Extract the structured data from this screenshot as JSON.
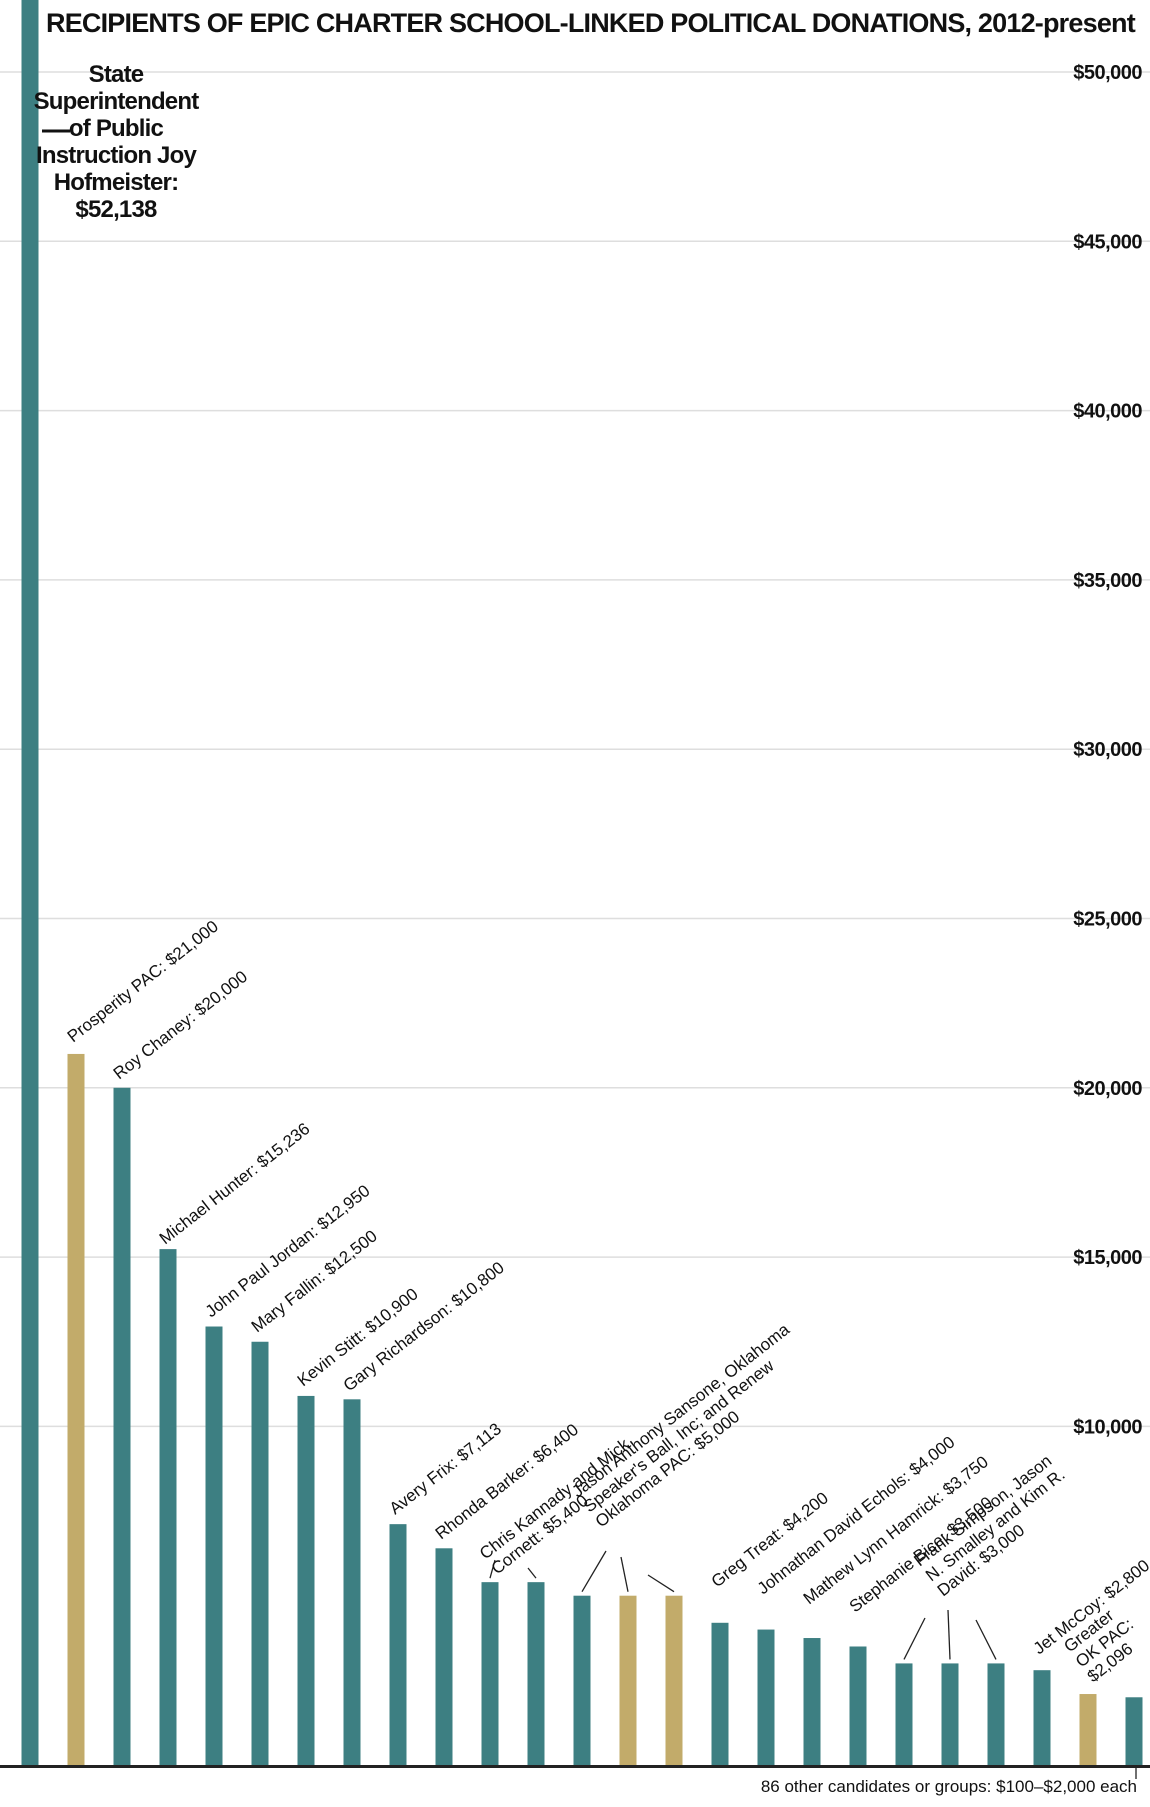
{
  "chart_data": {
    "type": "bar",
    "title": "RECIPIENTS OF EPIC CHARTER SCHOOL-LINKED POLITICAL DONATIONS, 2012-present",
    "ylim": [
      0,
      52138
    ],
    "yticks": [
      {
        "value": 10000,
        "label": "$10,000"
      },
      {
        "value": 15000,
        "label": "$15,000"
      },
      {
        "value": 20000,
        "label": "$20,000"
      },
      {
        "value": 25000,
        "label": "$25,000"
      },
      {
        "value": 30000,
        "label": "$30,000"
      },
      {
        "value": 35000,
        "label": "$35,000"
      },
      {
        "value": 40000,
        "label": "$40,000"
      },
      {
        "value": 45000,
        "label": "$45,000"
      },
      {
        "value": 50000,
        "label": "$50,000"
      }
    ],
    "grid": true,
    "colors": {
      "candidate": "#3d7f82",
      "pac": "#c2ab6a",
      "axis": "#222222",
      "grid": "#dedede"
    },
    "bars": [
      {
        "label": "State Superintendent of Public Instruction Joy Hofmeister: $52,138",
        "value": 52138,
        "kind": "candidate"
      },
      {
        "label": "Prosperity PAC: $21,000",
        "value": 21000,
        "kind": "pac"
      },
      {
        "label": "Roy Chaney: $20,000",
        "value": 20000,
        "kind": "candidate"
      },
      {
        "label": "Michael Hunter: $15,236",
        "value": 15236,
        "kind": "candidate"
      },
      {
        "label": "John Paul Jordan: $12,950",
        "value": 12950,
        "kind": "candidate"
      },
      {
        "label": "Mary Fallin: $12,500",
        "value": 12500,
        "kind": "candidate"
      },
      {
        "label": "Kevin Stitt: $10,900",
        "value": 10900,
        "kind": "candidate"
      },
      {
        "label": "Gary Richardson: $10,800",
        "value": 10800,
        "kind": "candidate"
      },
      {
        "label": "Avery Frix: $7,113",
        "value": 7113,
        "kind": "candidate"
      },
      {
        "label": "Rhonda Barker: $6,400",
        "value": 6400,
        "kind": "candidate"
      },
      {
        "label": "Chris Kannady and Mick Cornett: $5,400",
        "value": 5400,
        "kind": "candidate"
      },
      {
        "label": "Chris Kannady and Mick Cornett: $5,400",
        "value": 5400,
        "kind": "candidate"
      },
      {
        "label": "Jason Anthony Sansone, Oklahoma Speaker's Ball, Inc; and Renew Oklahoma PAC: $5,000",
        "value": 5000,
        "kind": "candidate"
      },
      {
        "label": "Jason Anthony Sansone, Oklahoma Speaker's Ball, Inc; and Renew Oklahoma PAC: $5,000",
        "value": 5000,
        "kind": "pac"
      },
      {
        "label": "Jason Anthony Sansone, Oklahoma Speaker's Ball, Inc; and Renew Oklahoma PAC: $5,000",
        "value": 5000,
        "kind": "pac"
      },
      {
        "label": "Greg Treat: $4,200",
        "value": 4200,
        "kind": "candidate"
      },
      {
        "label": "Johnathan David Echols: $4,000",
        "value": 4000,
        "kind": "candidate"
      },
      {
        "label": "Mathew Lynn Hamrick: $3,750",
        "value": 3750,
        "kind": "candidate"
      },
      {
        "label": "Stephanie Bice: $3,500",
        "value": 3500,
        "kind": "candidate"
      },
      {
        "label": "Frank Simpson, Jason N. Smalley and Kim R. David: $3,000",
        "value": 3000,
        "kind": "candidate"
      },
      {
        "label": "Frank Simpson, Jason N. Smalley and Kim R. David: $3,000",
        "value": 3000,
        "kind": "candidate"
      },
      {
        "label": "Frank Simpson, Jason N. Smalley and Kim R. David: $3,000",
        "value": 3000,
        "kind": "candidate"
      },
      {
        "label": "Jet McCoy: $2,800",
        "value": 2800,
        "kind": "candidate"
      },
      {
        "label": "Greater OK PAC: $2,096",
        "value": 2096,
        "kind": "pac"
      },
      {
        "label": "86 other candidates or groups: $100–$2,000 each",
        "value": 2000,
        "kind": "candidate"
      }
    ],
    "annotations": [
      {
        "lines": [
          "State",
          "Superintendent",
          "of Public",
          "Instruction Joy",
          "Hofmeister:",
          "$52,138"
        ]
      },
      {
        "lines": [
          "Prosperity PAC: $21,000"
        ]
      },
      {
        "lines": [
          "Roy Chaney: $20,000"
        ]
      },
      {
        "lines": [
          "Michael Hunter: $15,236"
        ]
      },
      {
        "lines": [
          "John Paul Jordan: $12,950"
        ]
      },
      {
        "lines": [
          "Mary Fallin: $12,500"
        ]
      },
      {
        "lines": [
          "Kevin Stitt: $10,900"
        ]
      },
      {
        "lines": [
          "Gary Richardson: $10,800"
        ]
      },
      {
        "lines": [
          "Avery Frix: $7,113"
        ]
      },
      {
        "lines": [
          "Rhonda Barker: $6,400"
        ]
      },
      {
        "lines": [
          "Chris Kannady and Mick",
          "Cornett: $5,400"
        ]
      },
      {
        "lines": [
          "Jason Anthony Sansone, Oklahoma",
          "Speaker's Ball, Inc; and Renew",
          "Oklahoma PAC: $5,000"
        ]
      },
      {
        "lines": [
          "Greg Treat: $4,200"
        ]
      },
      {
        "lines": [
          "Johnathan David Echols: $4,000"
        ]
      },
      {
        "lines": [
          "Mathew Lynn Hamrick: $3,750"
        ]
      },
      {
        "lines": [
          "Stephanie Bice: $3,500"
        ]
      },
      {
        "lines": [
          "Frank Simpson, Jason",
          "N. Smalley and Kim R.",
          "David: $3,000"
        ]
      },
      {
        "lines": [
          "Jet McCoy: $2,800"
        ]
      },
      {
        "lines": [
          "Greater",
          "OK PAC:",
          "$2,096"
        ]
      }
    ],
    "footnote": "86 other candidates or groups: $100–$2,000 each"
  }
}
